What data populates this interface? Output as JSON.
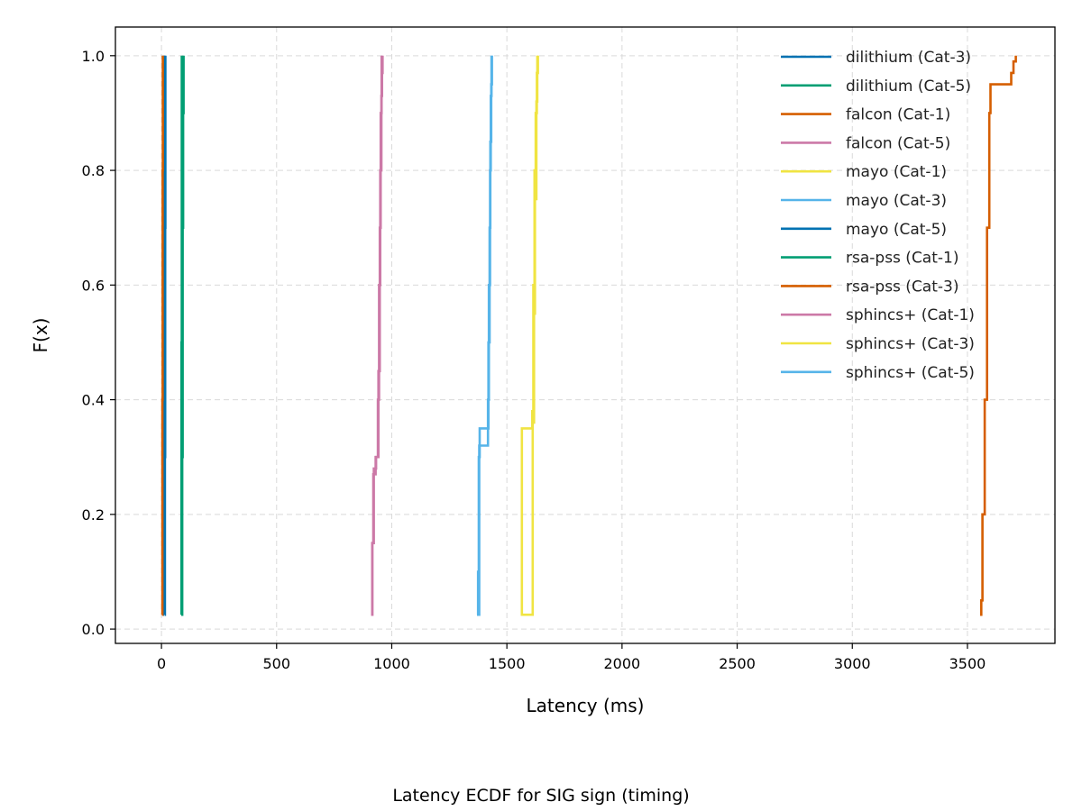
{
  "chart_data": {
    "type": "line",
    "xlabel": "Latency (ms)",
    "ylabel": "F(x)",
    "caption": "Latency ECDF for SIG sign (timing)",
    "xlim": [
      -200,
      3880
    ],
    "ylim": [
      -0.025,
      1.05
    ],
    "xticks": [
      0,
      500,
      1000,
      1500,
      2000,
      2500,
      3000,
      3500
    ],
    "yticks": [
      0.0,
      0.2,
      0.4,
      0.6,
      0.8,
      1.0
    ],
    "grid": true,
    "legend_position": "upper-right",
    "series": [
      {
        "name": "dilithium (Cat-3)",
        "color": "#0072B2",
        "x": [
          6,
          7,
          8,
          9,
          10
        ],
        "y": [
          0.025,
          0.3,
          0.6,
          0.9,
          1.0
        ]
      },
      {
        "name": "dilithium (Cat-5)",
        "color": "#009E73",
        "x": [
          88,
          90,
          92,
          94,
          96
        ],
        "y": [
          0.025,
          0.3,
          0.7,
          0.9,
          1.0
        ]
      },
      {
        "name": "falcon (Cat-1)",
        "color": "#D55E00",
        "x": [
          3,
          4,
          5,
          6
        ],
        "y": [
          0.025,
          0.4,
          0.8,
          1.0
        ]
      },
      {
        "name": "falcon (Cat-5)",
        "color": "#CC79A7",
        "x": [
          910,
          915,
          920,
          930,
          940,
          945,
          950,
          955,
          958,
          960
        ],
        "y": [
          0.025,
          0.15,
          0.27,
          0.3,
          0.4,
          0.6,
          0.8,
          0.93,
          0.97,
          1.0
        ]
      },
      {
        "name": "mayo (Cat-1)",
        "color": "#F0E442",
        "x": [
          1560,
          1565,
          1610,
          1615,
          1620,
          1625,
          1630,
          1635
        ],
        "y": [
          0.025,
          0.35,
          0.38,
          0.6,
          0.8,
          0.9,
          0.97,
          1.0
        ]
      },
      {
        "name": "mayo (Cat-3)",
        "color": "#56B4E9",
        "x": [
          1370,
          1375,
          1378,
          1382,
          1420,
          1425,
          1428,
          1432,
          1435
        ],
        "y": [
          0.025,
          0.1,
          0.3,
          0.35,
          0.5,
          0.7,
          0.85,
          0.95,
          1.0
        ]
      },
      {
        "name": "mayo (Cat-5)",
        "color": "#0072B2",
        "x": [
          14,
          15,
          16,
          17
        ],
        "y": [
          0.025,
          0.3,
          0.7,
          1.0
        ]
      },
      {
        "name": "rsa-pss (Cat-1)",
        "color": "#009E73",
        "x": [
          86,
          87,
          88
        ],
        "y": [
          0.025,
          0.5,
          1.0
        ]
      },
      {
        "name": "rsa-pss (Cat-3)",
        "color": "#D55E00",
        "x": [
          3555,
          3560,
          3565,
          3575,
          3585,
          3595,
          3600,
          3690,
          3700,
          3710
        ],
        "y": [
          0.025,
          0.05,
          0.2,
          0.4,
          0.7,
          0.9,
          0.95,
          0.97,
          0.99,
          1.0
        ]
      },
      {
        "name": "sphincs+ (Cat-1)",
        "color": "#CC79A7",
        "x": [
          912,
          916,
          922,
          932,
          942,
          948,
          952,
          956
        ],
        "y": [
          0.025,
          0.15,
          0.28,
          0.3,
          0.45,
          0.7,
          0.9,
          1.0
        ]
      },
      {
        "name": "sphincs+ (Cat-3)",
        "color": "#F0E442",
        "x": [
          1562,
          1612,
          1618,
          1622,
          1628,
          1632
        ],
        "y": [
          0.025,
          0.36,
          0.55,
          0.75,
          0.92,
          1.0
        ]
      },
      {
        "name": "sphincs+ (Cat-5)",
        "color": "#56B4E9",
        "x": [
          1372,
          1380,
          1418,
          1422,
          1427,
          1430,
          1433
        ],
        "y": [
          0.025,
          0.32,
          0.4,
          0.6,
          0.8,
          0.93,
          1.0
        ]
      }
    ]
  }
}
